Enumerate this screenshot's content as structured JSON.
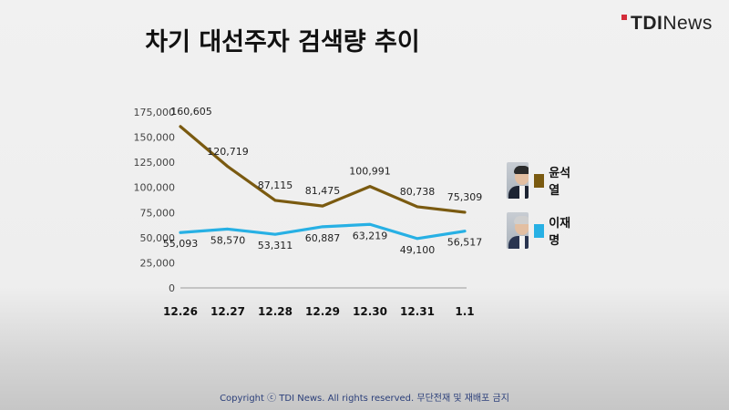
{
  "header": {
    "title": "차기 대선주자 검색량 추이",
    "brand_prefix": "TDI",
    "brand_suffix": "News"
  },
  "footer": {
    "copyright": "Copyright ⓒ TDI News. All rights reserved. 무단전재 및 재배포 금지"
  },
  "legend": [
    {
      "name": "윤석열",
      "color": "#7a5a10",
      "photo_icon": "person-photo-icon"
    },
    {
      "name": "이재명",
      "color": "#27b0e4",
      "photo_icon": "person-photo-icon"
    }
  ],
  "chart_data": {
    "type": "line",
    "categories": [
      "12.26",
      "12.27",
      "12.28",
      "12.29",
      "12.30",
      "12.31",
      "1.1"
    ],
    "series": [
      {
        "name": "윤석열",
        "color": "#7a5a10",
        "values": [
          160605,
          120719,
          87115,
          81475,
          100991,
          80738,
          75309
        ],
        "labels": [
          "160,605",
          "120,719",
          "87,115",
          "81,475",
          "100,991",
          "80,738",
          "75,309"
        ]
      },
      {
        "name": "이재명",
        "color": "#27b0e4",
        "values": [
          55093,
          58570,
          53311,
          60887,
          63219,
          49100,
          56517
        ],
        "labels": [
          "55,093",
          "58,570",
          "53,311",
          "60,887",
          "63,219",
          "49,100",
          "56,517"
        ]
      }
    ],
    "yticks": [
      0,
      25000,
      50000,
      75000,
      100000,
      125000,
      150000,
      175000
    ],
    "ytick_labels": [
      "0",
      "25,000",
      "50,000",
      "75,000",
      "100,000",
      "125,000",
      "150,000",
      "175,000"
    ],
    "ylim": [
      0,
      175000
    ],
    "grid": false,
    "legend_position": "right"
  }
}
